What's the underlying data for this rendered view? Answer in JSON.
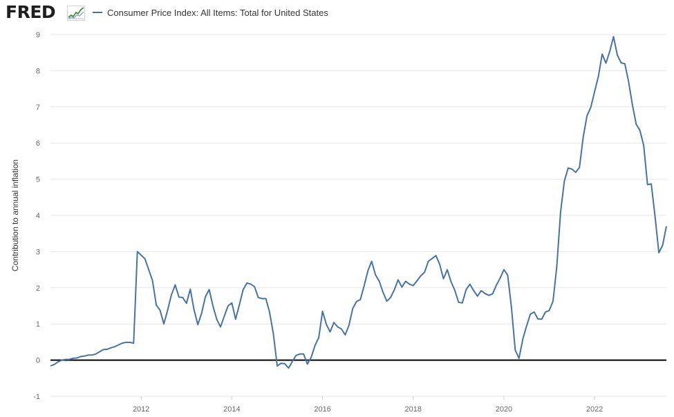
{
  "header": {
    "logo_text": "FRED",
    "logo_icon": "fred-chart-icon",
    "legend_label": "Consumer Price Index: All Items: Total for United States"
  },
  "colors": {
    "series": "#4572a7",
    "grid": "#e6e6e6",
    "zero_line": "#000000",
    "axis_text": "#666666"
  },
  "chart_data": {
    "type": "line",
    "title": "",
    "ylabel": "Contribution to annual inflation",
    "xlabel": "",
    "ylim": [
      -1,
      9
    ],
    "yticks": [
      -1,
      0,
      1,
      2,
      3,
      4,
      5,
      6,
      7,
      8,
      9
    ],
    "xlim": [
      "2010-01",
      "2023-08"
    ],
    "xticks": [
      "2012",
      "2014",
      "2016",
      "2018",
      "2020",
      "2022"
    ],
    "grid": true,
    "legend_position": "top-left",
    "series": [
      {
        "name": "Consumer Price Index: All Items: Total for United States",
        "points": [
          [
            "2010-01",
            -0.16
          ],
          [
            "2010-02",
            -0.12
          ],
          [
            "2010-03",
            -0.05
          ],
          [
            "2010-04",
            0.0
          ],
          [
            "2010-05",
            0.02
          ],
          [
            "2010-06",
            0.02
          ],
          [
            "2010-07",
            0.05
          ],
          [
            "2010-08",
            0.06
          ],
          [
            "2010-09",
            0.1
          ],
          [
            "2010-10",
            0.11
          ],
          [
            "2010-11",
            0.14
          ],
          [
            "2010-12",
            0.14
          ],
          [
            "2011-01",
            0.17
          ],
          [
            "2011-02",
            0.23
          ],
          [
            "2011-03",
            0.29
          ],
          [
            "2011-04",
            0.3
          ],
          [
            "2011-05",
            0.34
          ],
          [
            "2011-06",
            0.37
          ],
          [
            "2011-07",
            0.42
          ],
          [
            "2011-08",
            0.47
          ],
          [
            "2011-09",
            0.49
          ],
          [
            "2011-10",
            0.49
          ],
          [
            "2011-11",
            0.47
          ],
          [
            "2011-12",
            3.0
          ],
          [
            "2012-01",
            2.9
          ],
          [
            "2012-02",
            2.8
          ],
          [
            "2012-03",
            2.5
          ],
          [
            "2012-04",
            2.2
          ],
          [
            "2012-05",
            1.52
          ],
          [
            "2012-06",
            1.38
          ],
          [
            "2012-07",
            1.0
          ],
          [
            "2012-08",
            1.38
          ],
          [
            "2012-09",
            1.8
          ],
          [
            "2012-10",
            2.08
          ],
          [
            "2012-11",
            1.74
          ],
          [
            "2012-12",
            1.73
          ],
          [
            "2013-01",
            1.57
          ],
          [
            "2013-02",
            1.96
          ],
          [
            "2013-03",
            1.39
          ],
          [
            "2013-04",
            0.98
          ],
          [
            "2013-05",
            1.3
          ],
          [
            "2013-06",
            1.75
          ],
          [
            "2013-07",
            1.95
          ],
          [
            "2013-08",
            1.5
          ],
          [
            "2013-09",
            1.13
          ],
          [
            "2013-10",
            0.92
          ],
          [
            "2013-11",
            1.21
          ],
          [
            "2013-12",
            1.5
          ],
          [
            "2014-01",
            1.58
          ],
          [
            "2014-02",
            1.13
          ],
          [
            "2014-03",
            1.53
          ],
          [
            "2014-04",
            1.95
          ],
          [
            "2014-05",
            2.13
          ],
          [
            "2014-06",
            2.1
          ],
          [
            "2014-07",
            2.03
          ],
          [
            "2014-08",
            1.73
          ],
          [
            "2014-09",
            1.7
          ],
          [
            "2014-10",
            1.7
          ],
          [
            "2014-11",
            1.32
          ],
          [
            "2014-12",
            0.72
          ],
          [
            "2015-01",
            -0.16
          ],
          [
            "2015-02",
            -0.09
          ],
          [
            "2015-03",
            -0.1
          ],
          [
            "2015-04",
            -0.22
          ],
          [
            "2015-05",
            -0.04
          ],
          [
            "2015-06",
            0.13
          ],
          [
            "2015-07",
            0.17
          ],
          [
            "2015-08",
            0.17
          ],
          [
            "2015-09",
            -0.11
          ],
          [
            "2015-10",
            0.08
          ],
          [
            "2015-11",
            0.4
          ],
          [
            "2015-12",
            0.62
          ],
          [
            "2016-01",
            1.35
          ],
          [
            "2016-02",
            0.99
          ],
          [
            "2016-03",
            0.78
          ],
          [
            "2016-04",
            1.04
          ],
          [
            "2016-05",
            0.92
          ],
          [
            "2016-06",
            0.86
          ],
          [
            "2016-07",
            0.7
          ],
          [
            "2016-08",
            0.96
          ],
          [
            "2016-09",
            1.43
          ],
          [
            "2016-10",
            1.62
          ],
          [
            "2016-11",
            1.67
          ],
          [
            "2016-12",
            2.05
          ],
          [
            "2017-01",
            2.47
          ],
          [
            "2017-02",
            2.73
          ],
          [
            "2017-03",
            2.36
          ],
          [
            "2017-04",
            2.18
          ],
          [
            "2017-05",
            1.88
          ],
          [
            "2017-06",
            1.63
          ],
          [
            "2017-07",
            1.73
          ],
          [
            "2017-08",
            1.94
          ],
          [
            "2017-09",
            2.22
          ],
          [
            "2017-10",
            2.02
          ],
          [
            "2017-11",
            2.18
          ],
          [
            "2017-12",
            2.1
          ],
          [
            "2018-01",
            2.06
          ],
          [
            "2018-02",
            2.19
          ],
          [
            "2018-03",
            2.33
          ],
          [
            "2018-04",
            2.43
          ],
          [
            "2018-05",
            2.73
          ],
          [
            "2018-06",
            2.81
          ],
          [
            "2018-07",
            2.89
          ],
          [
            "2018-08",
            2.65
          ],
          [
            "2018-09",
            2.25
          ],
          [
            "2018-10",
            2.5
          ],
          [
            "2018-11",
            2.17
          ],
          [
            "2018-12",
            1.93
          ],
          [
            "2019-01",
            1.6
          ],
          [
            "2019-02",
            1.58
          ],
          [
            "2019-03",
            1.95
          ],
          [
            "2019-04",
            2.1
          ],
          [
            "2019-05",
            1.92
          ],
          [
            "2019-06",
            1.77
          ],
          [
            "2019-07",
            1.92
          ],
          [
            "2019-08",
            1.84
          ],
          [
            "2019-09",
            1.79
          ],
          [
            "2019-10",
            1.83
          ],
          [
            "2019-11",
            2.07
          ],
          [
            "2019-12",
            2.27
          ],
          [
            "2020-01",
            2.5
          ],
          [
            "2020-02",
            2.35
          ],
          [
            "2020-03",
            1.45
          ],
          [
            "2020-04",
            0.28
          ],
          [
            "2020-05",
            0.05
          ],
          [
            "2020-06",
            0.58
          ],
          [
            "2020-07",
            0.94
          ],
          [
            "2020-08",
            1.27
          ],
          [
            "2020-09",
            1.33
          ],
          [
            "2020-10",
            1.14
          ],
          [
            "2020-11",
            1.13
          ],
          [
            "2020-12",
            1.33
          ],
          [
            "2021-01",
            1.37
          ],
          [
            "2021-02",
            1.63
          ],
          [
            "2021-03",
            2.6
          ],
          [
            "2021-04",
            4.09
          ],
          [
            "2021-05",
            4.95
          ],
          [
            "2021-06",
            5.31
          ],
          [
            "2021-07",
            5.28
          ],
          [
            "2021-08",
            5.19
          ],
          [
            "2021-09",
            5.33
          ],
          [
            "2021-10",
            6.17
          ],
          [
            "2021-11",
            6.76
          ],
          [
            "2021-12",
            6.99
          ],
          [
            "2022-01",
            7.42
          ],
          [
            "2022-02",
            7.84
          ],
          [
            "2022-03",
            8.46
          ],
          [
            "2022-04",
            8.21
          ],
          [
            "2022-05",
            8.53
          ],
          [
            "2022-06",
            8.94
          ],
          [
            "2022-07",
            8.44
          ],
          [
            "2022-08",
            8.22
          ],
          [
            "2022-09",
            8.19
          ],
          [
            "2022-10",
            7.7
          ],
          [
            "2022-11",
            7.06
          ],
          [
            "2022-12",
            6.52
          ],
          [
            "2023-01",
            6.35
          ],
          [
            "2023-02",
            5.93
          ],
          [
            "2023-03",
            4.85
          ],
          [
            "2023-04",
            4.87
          ],
          [
            "2023-05",
            3.97
          ],
          [
            "2023-06",
            2.97
          ],
          [
            "2023-07",
            3.17
          ],
          [
            "2023-08",
            3.7
          ]
        ]
      }
    ]
  }
}
